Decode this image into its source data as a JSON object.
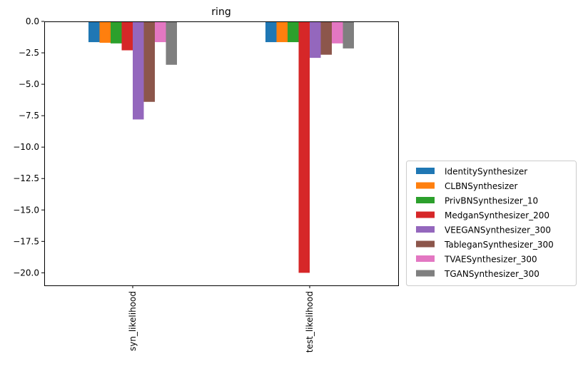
{
  "chart_data": {
    "type": "bar",
    "title": "ring",
    "xlabel": "",
    "ylabel": "",
    "categories": [
      "syn_likelihood",
      "test_likelihood"
    ],
    "ylim": [
      -21,
      0
    ],
    "yticks": [
      0.0,
      -2.5,
      -5.0,
      -7.5,
      -10.0,
      -12.5,
      -15.0,
      -17.5,
      -20.0
    ],
    "ytick_labels": [
      "0.0",
      "−2.5",
      "−5.0",
      "−7.5",
      "−10.0",
      "−12.5",
      "−15.0",
      "−17.5",
      "−20.0"
    ],
    "grid": false,
    "legend_position": "outside-right-bottom",
    "series": [
      {
        "name": "IdentitySynthesizer",
        "color": "#1f77b4",
        "values": [
          -1.65,
          -1.65
        ]
      },
      {
        "name": "CLBNSynthesizer",
        "color": "#ff7f0e",
        "values": [
          -1.7,
          -1.65
        ]
      },
      {
        "name": "PrivBNSynthesizer_10",
        "color": "#2ca02c",
        "values": [
          -1.75,
          -1.65
        ]
      },
      {
        "name": "MedganSynthesizer_200",
        "color": "#d62728",
        "values": [
          -2.3,
          -20.0
        ]
      },
      {
        "name": "VEEGANSynthesizer_300",
        "color": "#9467bd",
        "values": [
          -7.8,
          -2.9
        ]
      },
      {
        "name": "TableganSynthesizer_300",
        "color": "#8c564b",
        "values": [
          -6.4,
          -2.65
        ]
      },
      {
        "name": "TVAESynthesizer_300",
        "color": "#e377c2",
        "values": [
          -1.65,
          -1.75
        ]
      },
      {
        "name": "TGANSynthesizer_300",
        "color": "#7f7f7f",
        "values": [
          -3.45,
          -2.15
        ]
      }
    ]
  }
}
